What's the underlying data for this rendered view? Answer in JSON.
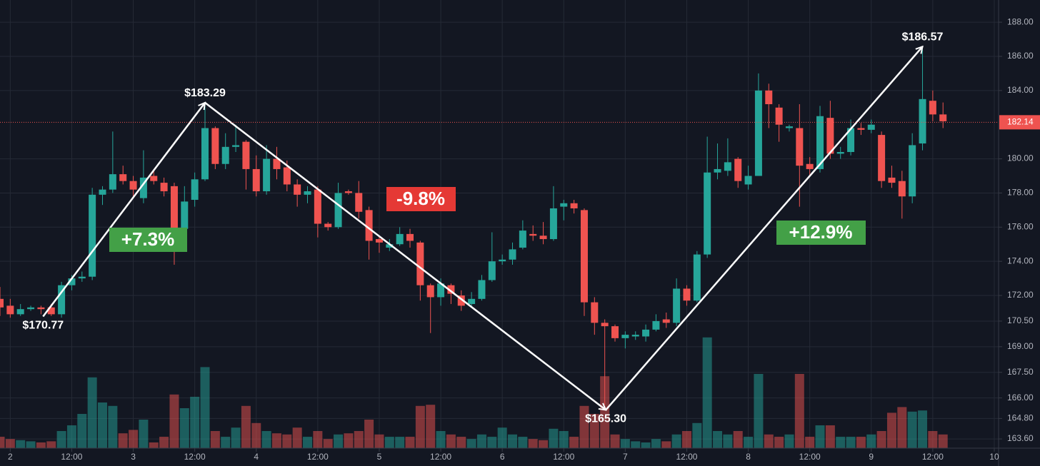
{
  "chart_data": {
    "type": "candlestick",
    "open": [
      171.8,
      171.4,
      170.9,
      171.2,
      171.3,
      171.3,
      170.9,
      172.6,
      173.0,
      173.1,
      177.9,
      178.2,
      179.1,
      178.7,
      177.7,
      179.0,
      178.6,
      178.4,
      175.9,
      177.6,
      178.8,
      181.8,
      179.7,
      180.7,
      181.0,
      179.4,
      178.1,
      180.0,
      179.5,
      178.5,
      177.9,
      178.2,
      176.2,
      176.0,
      178.1,
      178.0,
      177.0,
      175.3,
      174.8,
      175.0,
      175.6,
      175.1,
      172.6,
      171.9,
      172.6,
      172.0,
      171.5,
      171.8,
      172.9,
      174.0,
      174.1,
      174.8,
      175.6,
      175.5,
      175.3,
      177.2,
      177.4,
      177.0,
      171.6,
      170.4,
      170.2,
      169.5,
      169.6,
      169.6,
      170.0,
      170.6,
      170.4,
      172.4,
      171.7,
      174.4,
      179.2,
      179.3,
      180.0,
      178.5,
      179.0,
      184.0,
      183.0,
      181.8,
      181.8,
      179.7,
      179.4,
      182.4,
      180.3,
      180.4,
      181.8,
      181.7,
      181.4,
      178.9,
      178.7,
      177.8,
      180.9,
      183.4,
      182.6
    ],
    "high": [
      172.5,
      171.8,
      171.5,
      171.4,
      171.4,
      171.5,
      172.8,
      173.2,
      173.4,
      178.3,
      178.4,
      181.6,
      179.6,
      179.0,
      180.5,
      179.4,
      178.9,
      178.6,
      178.4,
      179.2,
      183.2,
      181.9,
      181.5,
      182.0,
      181.1,
      180.2,
      180.8,
      180.7,
      179.9,
      178.8,
      178.4,
      178.4,
      176.3,
      178.6,
      178.2,
      178.7,
      177.2,
      175.5,
      175.3,
      176.0,
      175.9,
      175.2,
      172.7,
      173.0,
      172.7,
      172.3,
      172.2,
      173.2,
      175.7,
      174.4,
      175.1,
      176.4,
      176.1,
      176.3,
      178.4,
      177.6,
      177.6,
      177.1,
      171.9,
      170.6,
      170.3,
      169.9,
      169.9,
      170.3,
      170.9,
      171.0,
      173.0,
      172.6,
      174.6,
      181.3,
      180.9,
      181.2,
      180.1,
      179.6,
      185.0,
      184.4,
      183.2,
      182.0,
      183.2,
      180.1,
      183.1,
      183.4,
      180.7,
      182.3,
      182.1,
      182.3,
      181.6,
      179.6,
      179.3,
      181.5,
      186.4,
      184.0,
      183.3
    ],
    "low": [
      170.8,
      170.7,
      170.8,
      171.1,
      170.9,
      170.8,
      170.7,
      172.3,
      172.8,
      172.9,
      177.3,
      178.0,
      178.5,
      177.8,
      177.4,
      178.5,
      177.8,
      173.8,
      175.5,
      177.2,
      178.7,
      179.4,
      179.4,
      180.4,
      178.2,
      177.8,
      177.9,
      178.8,
      178.1,
      177.2,
      177.4,
      175.4,
      175.8,
      175.9,
      177.9,
      176.5,
      174.1,
      174.5,
      174.6,
      174.9,
      174.8,
      171.7,
      169.8,
      171.4,
      171.5,
      171.1,
      171.3,
      171.7,
      172.8,
      173.8,
      173.8,
      174.7,
      175.2,
      175.0,
      175.2,
      176.4,
      176.8,
      170.8,
      169.7,
      165.6,
      169.3,
      168.9,
      169.4,
      169.3,
      169.9,
      170.1,
      170.2,
      171.4,
      171.6,
      174.2,
      178.8,
      179.0,
      178.3,
      178.2,
      179.0,
      181.8,
      181.0,
      181.6,
      177.2,
      179.0,
      179.2,
      180.0,
      180.0,
      180.2,
      181.4,
      181.5,
      178.3,
      178.3,
      176.5,
      177.4,
      180.5,
      182.2,
      181.8
    ],
    "close": [
      171.3,
      170.9,
      171.2,
      171.3,
      171.2,
      170.9,
      172.6,
      173.0,
      173.1,
      177.9,
      178.2,
      179.1,
      178.7,
      178.2,
      178.9,
      178.7,
      178.1,
      175.9,
      177.5,
      178.8,
      181.8,
      179.7,
      180.7,
      180.8,
      179.4,
      178.1,
      180.0,
      179.4,
      178.5,
      177.9,
      178.1,
      176.2,
      176.0,
      178.0,
      178.0,
      176.9,
      175.2,
      175.1,
      175.0,
      175.6,
      175.2,
      172.6,
      171.9,
      172.7,
      172.1,
      171.4,
      171.8,
      172.9,
      174.0,
      174.1,
      174.7,
      175.8,
      175.5,
      175.3,
      177.1,
      177.4,
      177.1,
      171.6,
      170.4,
      170.2,
      169.5,
      169.7,
      169.7,
      170.0,
      170.5,
      170.4,
      172.4,
      171.7,
      174.4,
      179.2,
      179.4,
      179.8,
      178.7,
      179.0,
      184.0,
      183.2,
      182.0,
      181.9,
      179.6,
      179.4,
      182.5,
      180.3,
      180.4,
      181.8,
      181.7,
      182.0,
      178.7,
      178.6,
      177.8,
      180.8,
      183.5,
      182.6,
      182.2
    ],
    "volume": [
      10,
      8,
      7,
      6,
      5,
      6,
      15,
      20,
      30,
      62,
      40,
      37,
      13,
      16,
      25,
      5,
      10,
      47,
      35,
      45,
      71,
      15,
      10,
      18,
      37,
      22,
      15,
      13,
      12,
      18,
      10,
      15,
      8,
      12,
      13,
      15,
      25,
      12,
      10,
      10,
      10,
      37,
      38,
      15,
      12,
      10,
      8,
      12,
      10,
      18,
      12,
      10,
      8,
      7,
      17,
      15,
      10,
      37,
      30,
      63,
      12,
      8,
      6,
      5,
      8,
      6,
      12,
      15,
      22,
      97,
      15,
      12,
      15,
      10,
      65,
      12,
      10,
      12,
      65,
      10,
      20,
      20,
      10,
      10,
      10,
      12,
      15,
      31,
      36,
      32,
      33,
      15,
      12
    ],
    "volume_lim": [
      0,
      100
    ],
    "up_color": "#26a69a",
    "down_color": "#ef5350",
    "ylim": [
      163.06,
      189.3
    ],
    "yticks": [
      {
        "value": 188,
        "label": "188.00"
      },
      {
        "value": 186,
        "label": "186.00"
      },
      {
        "value": 184,
        "label": "184.00"
      },
      {
        "value": 180,
        "label": "180.00"
      },
      {
        "value": 178,
        "label": "178.00"
      },
      {
        "value": 176,
        "label": "176.00"
      },
      {
        "value": 174,
        "label": "174.00"
      },
      {
        "value": 172,
        "label": "172.00"
      },
      {
        "value": 170.5,
        "label": "170.50"
      },
      {
        "value": 169,
        "label": "169.00"
      },
      {
        "value": 167.5,
        "label": "167.50"
      },
      {
        "value": 166,
        "label": "166.00"
      },
      {
        "value": 164.8,
        "label": "164.80"
      },
      {
        "value": 163.6,
        "label": "163.60"
      }
    ],
    "xlim": [
      0,
      97.42
    ],
    "xticks": [
      {
        "value": 1,
        "label": "2"
      },
      {
        "value": 7,
        "label": "12:00"
      },
      {
        "value": 13,
        "label": "3"
      },
      {
        "value": 19,
        "label": "12:00"
      },
      {
        "value": 25,
        "label": "4"
      },
      {
        "value": 31,
        "label": "12:00"
      },
      {
        "value": 37,
        "label": "5"
      },
      {
        "value": 43,
        "label": "12:00"
      },
      {
        "value": 49,
        "label": "6"
      },
      {
        "value": 55,
        "label": "12:00"
      },
      {
        "value": 61,
        "label": "7"
      },
      {
        "value": 67,
        "label": "12:00"
      },
      {
        "value": 73,
        "label": "8"
      },
      {
        "value": 79,
        "label": "12:00"
      },
      {
        "value": 85,
        "label": "9"
      },
      {
        "value": 91,
        "label": "12:00"
      },
      {
        "value": 97,
        "label": "10"
      }
    ],
    "grid": true,
    "last_price": 182.14,
    "points": [
      {
        "x": 4.2,
        "value": 170.77,
        "label": "$170.77"
      },
      {
        "x": 20,
        "value": 183.29,
        "label": "$183.29"
      },
      {
        "x": 59.1,
        "value": 165.3,
        "label": "$165.30"
      },
      {
        "x": 90,
        "value": 186.57,
        "label": "$186.57"
      }
    ],
    "changes": [
      "+7.3%",
      "-9.8%",
      "+12.9%"
    ]
  }
}
